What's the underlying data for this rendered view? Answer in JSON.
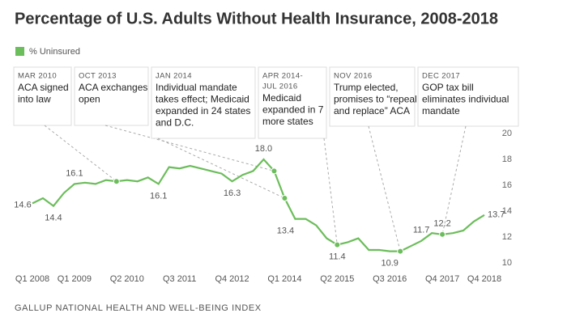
{
  "chart_data": {
    "type": "line",
    "title": "Percentage of U.S. Adults Without Health Insurance, 2008-2018",
    "source": "GALLUP NATIONAL HEALTH AND WELL-BEING INDEX",
    "categories": [
      "Q1 2008",
      null,
      null,
      null,
      "Q1 2009",
      null,
      null,
      null,
      null,
      "Q2 2010",
      null,
      null,
      null,
      null,
      "Q3 2011",
      null,
      null,
      null,
      null,
      "Q4 2012",
      null,
      null,
      null,
      null,
      "Q1 2014",
      null,
      null,
      null,
      null,
      "Q2 2015",
      null,
      null,
      null,
      null,
      "Q3 2016",
      null,
      null,
      null,
      null,
      "Q4 2017",
      null,
      null,
      null,
      "Q4 2018"
    ],
    "series": [
      {
        "name": "% Uninsured",
        "color": "#6cbd5b",
        "values": [
          14.6,
          15.0,
          14.4,
          15.4,
          16.1,
          16.2,
          16.1,
          16.4,
          16.3,
          16.4,
          16.3,
          16.6,
          16.1,
          17.4,
          17.3,
          17.5,
          17.3,
          17.1,
          16.9,
          16.3,
          16.8,
          17.1,
          18.0,
          17.1,
          15.0,
          13.4,
          13.4,
          12.9,
          11.9,
          11.4,
          11.6,
          11.9,
          11.0,
          11.0,
          10.9,
          10.9,
          11.3,
          11.7,
          12.3,
          12.2,
          12.3,
          12.5,
          13.2,
          13.7
        ],
        "value_labels": [
          "14.6",
          null,
          "14.4",
          null,
          "16.1",
          null,
          null,
          null,
          null,
          null,
          null,
          null,
          "16.1",
          null,
          null,
          null,
          null,
          null,
          null,
          "16.3",
          null,
          null,
          "18.0",
          null,
          null,
          "13.4",
          null,
          null,
          null,
          "11.4",
          null,
          null,
          null,
          null,
          "10.9",
          null,
          null,
          "11.7",
          null,
          "12.2",
          null,
          null,
          null,
          "13.7"
        ]
      }
    ],
    "annotations": [
      {
        "date": "MAR 2010",
        "lines": [
          "ACA signed",
          "into law"
        ]
      },
      {
        "date": "OCT 2013",
        "lines": [
          "ACA exchanges",
          "open"
        ]
      },
      {
        "date": "JAN 2014",
        "lines": [
          "Individual mandate",
          "takes effect; Medicaid",
          "expanded in 24 states",
          "and D.C."
        ]
      },
      {
        "date": "APR 2014-",
        "date2": "JUL 2016",
        "lines": [
          "Medicaid",
          "expanded in 7",
          "more states"
        ]
      },
      {
        "date": "NOV 2016",
        "lines": [
          "Trump elected,",
          "promises to “repeal",
          "and replace” ACA"
        ]
      },
      {
        "date": "DEC 2017",
        "lines": [
          "GOP tax bill",
          "eliminates individual",
          "mandate"
        ]
      }
    ],
    "ylim": [
      10,
      20
    ],
    "yticks": [
      10,
      12,
      14,
      16,
      18,
      20
    ],
    "y_axis_side": "right",
    "grid": false
  }
}
